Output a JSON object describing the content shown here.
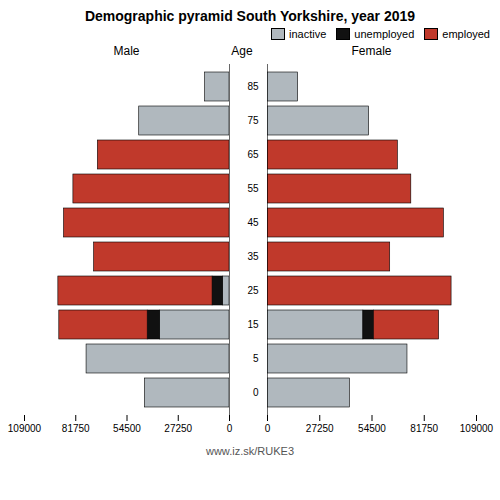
{
  "chart_data": {
    "type": "bar",
    "orientation": "horizontal",
    "stacked": true,
    "title": "Demographic pyramid South Yorkshire, year 2019",
    "y_label": "Age",
    "caption": "www.iz.sk/RUKE3",
    "legend": "upper right",
    "categories": [
      "85",
      "75",
      "65",
      "55",
      "45",
      "35",
      "25",
      "15",
      "5",
      "0"
    ],
    "panels": [
      {
        "x_label": "Male",
        "xlim": [
          109000,
          0
        ],
        "xticks": [
          109000,
          81750,
          54500,
          27250,
          0
        ],
        "series": [
          {
            "name": "inactive",
            "color": "#b0b8be",
            "values": [
              13000,
              48000,
              0,
              0,
              0,
              0,
              3500,
              37000,
              76000,
              45000
            ]
          },
          {
            "name": "unemployed",
            "color": "#111111",
            "values": [
              0,
              0,
              0,
              0,
              0,
              0,
              5500,
              6500,
              0,
              0
            ]
          },
          {
            "name": "employed",
            "color": "#c0392b",
            "values": [
              0,
              0,
              70000,
              83000,
              88000,
              72000,
              82000,
              47000,
              0,
              0
            ]
          }
        ]
      },
      {
        "x_label": "Female",
        "xlim": [
          0,
          109000
        ],
        "xticks": [
          0,
          27250,
          54500,
          81750,
          109000
        ],
        "series": [
          {
            "name": "inactive",
            "color": "#b0b8be",
            "values": [
              16000,
              53000,
              0,
              0,
              0,
              0,
              0,
              50000,
              73000,
              43000
            ]
          },
          {
            "name": "unemployed",
            "color": "#111111",
            "values": [
              0,
              0,
              0,
              0,
              0,
              0,
              0,
              5500,
              0,
              0
            ]
          },
          {
            "name": "employed",
            "color": "#c0392b",
            "values": [
              0,
              0,
              68000,
              75000,
              92000,
              64000,
              96000,
              34000,
              0,
              0
            ]
          }
        ]
      }
    ]
  }
}
